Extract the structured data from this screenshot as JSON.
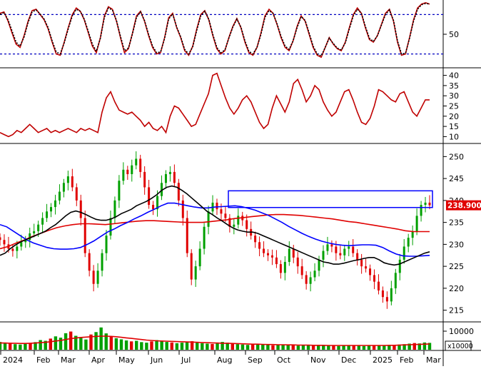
{
  "colors": {
    "up": "#00a000",
    "down": "#e00000",
    "ma_black": "#000000",
    "ma_blue": "#0000ff",
    "ma_red": "#e00000",
    "dashed": "#0000c0",
    "osc": "#c00000",
    "box": "#0000ff"
  },
  "chart_data": [
    {
      "type": "line",
      "panel": "stochastic",
      "y_ticks": [
        "50"
      ],
      "y_tick_values": [
        50
      ],
      "ylim": [
        0,
        100
      ],
      "reference_levels": [
        80,
        20
      ],
      "series": [
        {
          "values": [
            82,
            84,
            70,
            52,
            35,
            30,
            48,
            70,
            86,
            88,
            80,
            72,
            58,
            38,
            20,
            18,
            38,
            60,
            80,
            90,
            85,
            72,
            52,
            32,
            22,
            45,
            78,
            92,
            88,
            70,
            45,
            22,
            28,
            52,
            78,
            85,
            70,
            48,
            30,
            20,
            22,
            45,
            75,
            82,
            60,
            45,
            25,
            18,
            32,
            58,
            80,
            86,
            72,
            48,
            28,
            20,
            25,
            45,
            62,
            74,
            60,
            38,
            22,
            18,
            30,
            52,
            78,
            88,
            82,
            65,
            45,
            30,
            25,
            40,
            62,
            78,
            70,
            50,
            30,
            18,
            15,
            30,
            45,
            35,
            28,
            25,
            38,
            60,
            80,
            90,
            82,
            60,
            42,
            38,
            48,
            65,
            82,
            88,
            70,
            38,
            18,
            20,
            45,
            72,
            90,
            96,
            98,
            96
          ]
        },
        {
          "values": [
            80,
            83,
            72,
            55,
            38,
            32,
            46,
            68,
            84,
            87,
            81,
            73,
            60,
            40,
            23,
            20,
            37,
            58,
            78,
            88,
            85,
            73,
            54,
            35,
            24,
            44,
            76,
            90,
            87,
            71,
            47,
            25,
            29,
            51,
            76,
            84,
            71,
            50,
            32,
            22,
            23,
            44,
            73,
            81,
            61,
            46,
            27,
            20,
            31,
            56,
            78,
            85,
            73,
            50,
            30,
            22,
            26,
            44,
            61,
            73,
            61,
            40,
            24,
            20,
            30,
            50,
            76,
            86,
            82,
            66,
            47,
            32,
            27,
            40,
            60,
            77,
            71,
            52,
            32,
            20,
            17,
            30,
            44,
            36,
            29,
            26,
            37,
            58,
            78,
            88,
            82,
            62,
            44,
            39,
            48,
            64,
            80,
            87,
            71,
            40,
            20,
            21,
            44,
            70,
            88,
            95,
            97,
            96
          ]
        }
      ]
    },
    {
      "type": "line",
      "panel": "indicator",
      "y_ticks": [
        "40",
        "35",
        "30",
        "25",
        "20",
        "15",
        "10"
      ],
      "y_tick_values": [
        40,
        35,
        30,
        25,
        20,
        15,
        10
      ],
      "ylim": [
        7,
        43
      ],
      "series": [
        {
          "values": [
            12,
            11,
            10,
            11,
            13,
            12,
            14,
            16,
            14,
            12,
            13,
            14,
            12,
            13,
            12,
            13,
            14,
            13,
            12,
            14,
            13,
            14,
            13,
            12,
            22,
            29,
            32,
            27,
            23,
            22,
            21,
            22,
            20,
            18,
            15,
            17,
            14,
            13,
            15,
            12,
            20,
            25,
            24,
            21,
            18,
            15,
            16,
            21,
            26,
            31,
            40,
            41,
            35,
            29,
            24,
            21,
            24,
            28,
            30,
            27,
            22,
            17,
            14,
            16,
            24,
            30,
            26,
            22,
            27,
            36,
            38,
            33,
            27,
            30,
            35,
            33,
            27,
            23,
            20,
            22,
            27,
            32,
            33,
            28,
            22,
            17,
            16,
            19,
            25,
            33,
            32,
            30,
            28,
            27,
            31,
            32,
            27,
            22,
            20,
            24,
            28,
            28
          ]
        }
      ]
    },
    {
      "type": "candlestick",
      "panel": "price",
      "y_ticks": [
        "250",
        "245",
        "240",
        "235",
        "230",
        "225",
        "220",
        "215"
      ],
      "y_tick_values": [
        250,
        245,
        240,
        235,
        230,
        225,
        220,
        215
      ],
      "ylim": [
        212.5,
        252.5
      ],
      "x_tick_labels": [
        "2024",
        "Feb",
        "Mar",
        "Apr",
        "May",
        "Jun",
        "Jul",
        "Aug",
        "Sep",
        "Oct",
        "Nov",
        "Dec",
        "2025",
        "Feb",
        "Mar"
      ],
      "last_price_label": "238.9000",
      "last_price": 238.9,
      "highlight_box": {
        "y_top": 242.2,
        "y_bottom": 238.4
      },
      "close": [
        231.0,
        230.0,
        229.0,
        228.5,
        229.5,
        230.5,
        231.0,
        232.5,
        233.0,
        234.5,
        236.0,
        237.5,
        238.5,
        240.0,
        242.0,
        244.0,
        245.5,
        243.0,
        240.0,
        236.0,
        228.0,
        224.0,
        221.0,
        224.0,
        228.0,
        232.0,
        236.0,
        240.0,
        244.5,
        247.0,
        246.0,
        248.0,
        249.5,
        246.5,
        243.0,
        239.0,
        238.0,
        241.0,
        244.0,
        246.0,
        246.5,
        244.0,
        240.0,
        236.0,
        228.0,
        222.0,
        225.0,
        229.0,
        234.0,
        237.5,
        239.5,
        238.0,
        237.0,
        236.0,
        234.0,
        234.5,
        236.5,
        235.5,
        233.5,
        232.0,
        230.5,
        229.0,
        228.0,
        227.5,
        227.0,
        225.5,
        223.5,
        226.0,
        229.0,
        227.0,
        225.0,
        223.0,
        221.0,
        222.5,
        224.0,
        226.5,
        228.5,
        230.0,
        229.5,
        228.0,
        227.5,
        229.0,
        229.5,
        228.0,
        226.5,
        225.0,
        224.5,
        223.0,
        221.5,
        219.5,
        218.0,
        217.0,
        220.0,
        223.5,
        226.5,
        229.5,
        231.5,
        233.0,
        236.5,
        239.0,
        239.5,
        238.9
      ],
      "series": [
        {
          "name": "MA black",
          "values": [
            227.5,
            228.0,
            229.0,
            229.8,
            230.5,
            231.0,
            231.5,
            232.0,
            232.5,
            233.0,
            233.8,
            234.5,
            235.5,
            236.5,
            237.3,
            237.6,
            237.3,
            236.8,
            236.2,
            235.7,
            235.5,
            235.5,
            235.8,
            236.3,
            237.0,
            237.5,
            238.0,
            238.8,
            239.3,
            239.8,
            240.5,
            241.3,
            242.3,
            243.0,
            243.3,
            243.0,
            242.3,
            241.5,
            240.5,
            239.5,
            238.5,
            237.5,
            236.8,
            236.0,
            235.3,
            234.5,
            233.8,
            233.3,
            233.0,
            232.8,
            232.8,
            232.5,
            232.0,
            231.5,
            231.0,
            230.5,
            230.0,
            229.5,
            229.0,
            228.5,
            228.0,
            227.5,
            227.0,
            226.5,
            226.0,
            225.8,
            225.5,
            225.5,
            225.7,
            226.0,
            226.3,
            226.5,
            226.8,
            227.0,
            227.0,
            226.5,
            225.8,
            225.5,
            225.3,
            225.5,
            226.0,
            226.5,
            227.0,
            227.5,
            228.0,
            228.3
          ]
        },
        {
          "name": "MA blue",
          "values": [
            234.5,
            234.0,
            233.0,
            232.0,
            231.0,
            230.3,
            229.8,
            229.3,
            229.0,
            228.9,
            228.9,
            229.0,
            229.3,
            230.0,
            230.8,
            231.8,
            232.8,
            233.5,
            234.3,
            235.0,
            235.8,
            236.5,
            237.3,
            238.0,
            238.8,
            239.4,
            239.4,
            239.1,
            238.8,
            238.5,
            238.3,
            238.3,
            238.5,
            238.6,
            238.7,
            238.8,
            238.6,
            238.2,
            237.8,
            237.2,
            236.6,
            235.8,
            235.0,
            234.1,
            233.3,
            232.5,
            231.8,
            231.2,
            230.7,
            230.3,
            230.0,
            229.8,
            229.7,
            229.8,
            229.9,
            229.9,
            229.8,
            229.3,
            228.5,
            227.8,
            227.4,
            227.3,
            227.3,
            227.4,
            227.5
          ]
        },
        {
          "name": "MA red",
          "values": [
            229.0,
            229.5,
            230.3,
            231.0,
            231.8,
            232.5,
            233.2,
            233.8,
            234.2,
            234.5,
            234.7,
            234.7,
            234.6,
            234.5,
            234.7,
            234.9,
            235.1,
            235.3,
            235.4,
            235.4,
            235.3,
            235.2,
            235.1,
            235.0,
            235.0,
            235.0,
            235.2,
            235.4,
            235.6,
            235.9,
            236.1,
            236.3,
            236.5,
            236.7,
            236.8,
            236.8,
            236.7,
            236.6,
            236.4,
            236.2,
            236.0,
            235.8,
            235.5,
            235.2,
            235.0,
            234.7,
            234.4,
            234.1,
            233.8,
            233.5,
            233.1,
            232.9,
            232.9,
            232.9
          ]
        }
      ]
    },
    {
      "type": "bar",
      "panel": "volume",
      "y_ticks": [
        "10000"
      ],
      "y_tick_values": [
        10000
      ],
      "unit_label": "x10000",
      "ylim": [
        0,
        15000
      ],
      "values": [
        4200,
        3500,
        3800,
        3000,
        2800,
        3200,
        3500,
        4100,
        5200,
        4800,
        6000,
        7200,
        6500,
        8900,
        9800,
        7500,
        6800,
        5500,
        8200,
        9500,
        12000,
        8800,
        7000,
        6200,
        5600,
        5000,
        4500,
        4800,
        4100,
        3800,
        4500,
        5200,
        4800,
        4200,
        3900,
        3500,
        3800,
        4200,
        4600,
        3800,
        3500,
        3300,
        3100,
        3600,
        4200,
        3800,
        3400,
        3000,
        2800,
        2600,
        2900,
        3100,
        2700,
        2500,
        2400,
        2600,
        2800,
        2500,
        2300,
        2200,
        2400,
        2600,
        2300,
        2100,
        2500,
        2300,
        2100,
        2000,
        2200,
        2400,
        2300,
        2100,
        2000,
        2200,
        2500,
        2300,
        2100,
        2400,
        2600,
        2800,
        3000,
        3300,
        3600,
        3400,
        3900,
        3700
      ],
      "series": [
        {
          "name": "volume MA",
          "values": [
            3600,
            3600,
            3500,
            3500,
            3400,
            3400,
            3500,
            3600,
            3800,
            4000,
            4300,
            4700,
            5000,
            5500,
            6000,
            6300,
            6600,
            6800,
            7000,
            7200,
            7300,
            7300,
            7200,
            7000,
            6700,
            6400,
            6100,
            5800,
            5500,
            5200,
            5000,
            4800,
            4700,
            4600,
            4500,
            4400,
            4300,
            4200,
            4100,
            4000,
            3900,
            3800,
            3700,
            3600,
            3500,
            3500,
            3400,
            3300,
            3200,
            3100,
            3000,
            3000,
            2900,
            2800,
            2800,
            2700,
            2700,
            2600,
            2600,
            2500,
            2500,
            2500,
            2400,
            2400,
            2400,
            2300,
            2300,
            2300,
            2300,
            2300,
            2300,
            2300,
            2300,
            2300,
            2300,
            2300,
            2300,
            2400,
            2400,
            2500,
            2600,
            2700,
            2800,
            2900,
            3000,
            3100
          ]
        }
      ]
    }
  ]
}
